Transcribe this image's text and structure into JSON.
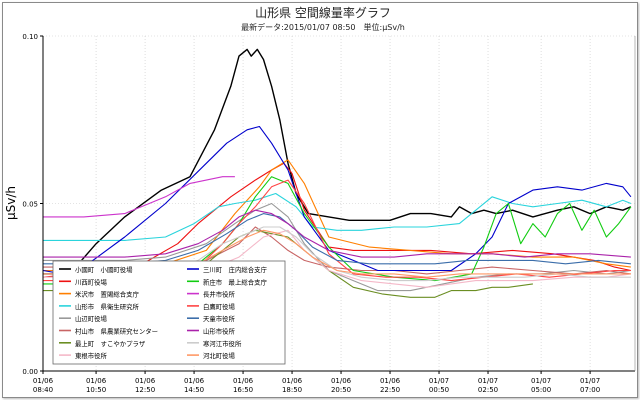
{
  "chart_data": {
    "type": "line",
    "title": "山形県 空間線量率グラフ",
    "subtitle": "最新データ:2015/01/07 08:50　単位:μSv/h",
    "ylabel": "μSv/h",
    "xlabel": "",
    "ylim": [
      0,
      0.1
    ],
    "y_ticks": [
      {
        "value": 0,
        "label": "0.00"
      },
      {
        "value": 0.05,
        "label": "0.05"
      },
      {
        "value": 0.1,
        "label": "0.10"
      }
    ],
    "x_ticks": [
      {
        "t": 0,
        "date": "01/06",
        "time": "08:40"
      },
      {
        "t": 130,
        "date": "01/06",
        "time": "10:50"
      },
      {
        "t": 250,
        "date": "01/06",
        "time": "12:50"
      },
      {
        "t": 370,
        "date": "01/06",
        "time": "14:50"
      },
      {
        "t": 490,
        "date": "01/06",
        "time": "16:50"
      },
      {
        "t": 610,
        "date": "01/06",
        "time": "18:50"
      },
      {
        "t": 730,
        "date": "01/06",
        "time": "20:50"
      },
      {
        "t": 850,
        "date": "01/06",
        "time": "22:50"
      },
      {
        "t": 970,
        "date": "01/07",
        "time": "00:50"
      },
      {
        "t": 1090,
        "date": "01/07",
        "time": "02:50"
      },
      {
        "t": 1220,
        "date": "01/07",
        "time": "05:00"
      },
      {
        "t": 1340,
        "date": "01/07",
        "time": "07:00"
      }
    ],
    "x_range": [
      0,
      1450
    ],
    "grid": "dotted",
    "legend_position": "bottom-left",
    "series": [
      {
        "name": "小國町　小國町役場",
        "color": "#000000",
        "t": [
          0,
          40,
          80,
          130,
          200,
          290,
          360,
          420,
          460,
          480,
          500,
          510,
          525,
          540,
          560,
          580,
          600,
          620,
          650,
          700,
          750,
          800,
          850,
          900,
          950,
          1000,
          1020,
          1050,
          1080,
          1110,
          1150,
          1200,
          1260,
          1300,
          1340,
          1380,
          1420,
          1440
        ],
        "v": [
          0.029,
          0.029,
          0.031,
          0.038,
          0.046,
          0.054,
          0.058,
          0.072,
          0.085,
          0.094,
          0.096,
          0.094,
          0.096,
          0.093,
          0.085,
          0.075,
          0.062,
          0.053,
          0.047,
          0.046,
          0.045,
          0.045,
          0.045,
          0.047,
          0.047,
          0.046,
          0.049,
          0.047,
          0.048,
          0.047,
          0.048,
          0.046,
          0.048,
          0.049,
          0.047,
          0.049,
          0.048,
          0.049
        ]
      },
      {
        "name": "川西町役場",
        "color": "#ee1111",
        "t": [
          0,
          80,
          150,
          230,
          330,
          380,
          460,
          520,
          560,
          590,
          610,
          640,
          700,
          760,
          850,
          950,
          1050,
          1150,
          1250,
          1350,
          1400,
          1440
        ],
        "v": [
          0.028,
          0.029,
          0.029,
          0.031,
          0.038,
          0.044,
          0.052,
          0.057,
          0.06,
          0.062,
          0.059,
          0.048,
          0.037,
          0.036,
          0.036,
          0.036,
          0.035,
          0.036,
          0.035,
          0.033,
          0.031,
          0.03
        ]
      },
      {
        "name": "米沢市　置賜総合支庁",
        "color": "#ff7f00",
        "t": [
          0,
          100,
          200,
          300,
          400,
          470,
          530,
          560,
          600,
          640,
          700,
          800,
          900,
          1000,
          1100,
          1200,
          1300,
          1380,
          1440
        ],
        "v": [
          0.03,
          0.03,
          0.031,
          0.032,
          0.036,
          0.047,
          0.055,
          0.06,
          0.063,
          0.056,
          0.04,
          0.037,
          0.036,
          0.035,
          0.035,
          0.034,
          0.034,
          0.032,
          0.031
        ]
      },
      {
        "name": "山形市　県衛生研究所",
        "color": "#2ad4dc",
        "t": [
          0,
          100,
          200,
          300,
          370,
          430,
          470,
          520,
          570,
          620,
          660,
          720,
          780,
          860,
          940,
          1020,
          1060,
          1100,
          1150,
          1200,
          1260,
          1320,
          1380,
          1420,
          1440
        ],
        "v": [
          0.039,
          0.039,
          0.039,
          0.04,
          0.044,
          0.049,
          0.05,
          0.051,
          0.053,
          0.049,
          0.043,
          0.042,
          0.042,
          0.043,
          0.043,
          0.044,
          0.048,
          0.052,
          0.05,
          0.049,
          0.05,
          0.051,
          0.049,
          0.051,
          0.05
        ]
      },
      {
        "name": "山辺町役場",
        "color": "#999999",
        "t": [
          0,
          100,
          200,
          300,
          400,
          470,
          520,
          560,
          600,
          640,
          700,
          760,
          820,
          900,
          980,
          1060,
          1140,
          1220,
          1300,
          1380,
          1440
        ],
        "v": [
          0.033,
          0.033,
          0.033,
          0.034,
          0.038,
          0.044,
          0.048,
          0.05,
          0.046,
          0.038,
          0.03,
          0.027,
          0.024,
          0.024,
          0.026,
          0.028,
          0.029,
          0.029,
          0.03,
          0.029,
          0.03
        ]
      },
      {
        "name": "村山市　県農業研究センター",
        "color": "#c86464",
        "t": [
          0,
          100,
          200,
          300,
          400,
          480,
          520,
          560,
          600,
          640,
          700,
          780,
          860,
          940,
          1020,
          1100,
          1200,
          1300,
          1380,
          1440
        ],
        "v": [
          0.031,
          0.031,
          0.031,
          0.031,
          0.033,
          0.038,
          0.043,
          0.04,
          0.036,
          0.033,
          0.031,
          0.03,
          0.03,
          0.029,
          0.03,
          0.031,
          0.03,
          0.029,
          0.03,
          0.029
        ]
      },
      {
        "name": "最上町　すこやかプラザ",
        "color": "#6b8e23",
        "t": [
          0,
          100,
          200,
          300,
          380,
          440,
          480,
          520,
          560,
          600,
          640,
          700,
          760,
          830,
          900,
          960,
          1000,
          1060,
          1100,
          1140,
          1200
        ],
        "v": [
          0.024,
          0.024,
          0.025,
          0.026,
          0.03,
          0.036,
          0.04,
          0.042,
          0.041,
          0.04,
          0.036,
          0.03,
          0.025,
          0.023,
          0.022,
          0.022,
          0.024,
          0.024,
          0.025,
          0.025,
          0.026
        ]
      },
      {
        "name": "東根市役所",
        "color": "#f4b8c8",
        "t": [
          0,
          100,
          200,
          300,
          400,
          480,
          540,
          600,
          640,
          700,
          780,
          860,
          940,
          1000,
          1060,
          1120,
          1200,
          1300,
          1380,
          1440
        ],
        "v": [
          0.028,
          0.028,
          0.028,
          0.028,
          0.03,
          0.034,
          0.04,
          0.042,
          0.036,
          0.03,
          0.027,
          0.026,
          0.025,
          0.026,
          0.027,
          0.027,
          0.027,
          0.028,
          0.028,
          0.029
        ]
      },
      {
        "name": "三川町　庄内総合支庁",
        "color": "#0000cc",
        "t": [
          0,
          50,
          100,
          200,
          300,
          400,
          450,
          500,
          530,
          560,
          600,
          640,
          700,
          760,
          820,
          900,
          1000,
          1060,
          1100,
          1140,
          1200,
          1260,
          1320,
          1380,
          1420,
          1440
        ],
        "v": [
          0.03,
          0.029,
          0.031,
          0.04,
          0.05,
          0.062,
          0.068,
          0.072,
          0.073,
          0.068,
          0.06,
          0.046,
          0.036,
          0.033,
          0.03,
          0.03,
          0.03,
          0.035,
          0.04,
          0.05,
          0.054,
          0.055,
          0.054,
          0.056,
          0.055,
          0.052
        ]
      },
      {
        "name": "新庄市　最上総合支庁",
        "color": "#11cc11",
        "t": [
          0,
          100,
          200,
          300,
          380,
          440,
          480,
          520,
          560,
          600,
          640,
          700,
          760,
          860,
          960,
          1050,
          1080,
          1110,
          1140,
          1170,
          1200,
          1230,
          1260,
          1290,
          1320,
          1350,
          1380,
          1410,
          1440
        ],
        "v": [
          0.026,
          0.026,
          0.026,
          0.027,
          0.032,
          0.038,
          0.044,
          0.052,
          0.058,
          0.056,
          0.047,
          0.037,
          0.03,
          0.028,
          0.027,
          0.029,
          0.037,
          0.047,
          0.05,
          0.038,
          0.044,
          0.04,
          0.047,
          0.05,
          0.042,
          0.048,
          0.04,
          0.044,
          0.049
        ]
      },
      {
        "name": "長井市役所",
        "color": "#cc33cc",
        "t": [
          0,
          100,
          200,
          260,
          300,
          360,
          400,
          440,
          470
        ],
        "v": [
          0.046,
          0.046,
          0.047,
          0.05,
          0.052,
          0.056,
          0.057,
          0.058,
          0.058
        ]
      },
      {
        "name": "白鷹町役場",
        "color": "#ff4444",
        "t": [
          0,
          100,
          200,
          300,
          380,
          440,
          480,
          520,
          560,
          600,
          640,
          700,
          760,
          840,
          920,
          1000,
          1080,
          1160,
          1240,
          1320,
          1400,
          1440
        ],
        "v": [
          0.027,
          0.027,
          0.027,
          0.028,
          0.031,
          0.038,
          0.044,
          0.049,
          0.055,
          0.057,
          0.05,
          0.035,
          0.029,
          0.028,
          0.028,
          0.027,
          0.028,
          0.029,
          0.028,
          0.029,
          0.03,
          0.03
        ]
      },
      {
        "name": "天童市役所",
        "color": "#3c6eaa",
        "t": [
          0,
          100,
          200,
          300,
          380,
          450,
          500,
          540,
          580,
          620,
          660,
          720,
          800,
          880,
          960,
          1040,
          1120,
          1200,
          1280,
          1360,
          1440
        ],
        "v": [
          0.032,
          0.032,
          0.032,
          0.033,
          0.036,
          0.041,
          0.045,
          0.047,
          0.046,
          0.042,
          0.037,
          0.033,
          0.032,
          0.032,
          0.032,
          0.033,
          0.033,
          0.033,
          0.032,
          0.033,
          0.032
        ]
      },
      {
        "name": "山形市役所",
        "color": "#aa22aa",
        "t": [
          0,
          100,
          200,
          300,
          380,
          440,
          480,
          520,
          560,
          600,
          640,
          700,
          780,
          860,
          940,
          1020,
          1100,
          1180,
          1260,
          1340,
          1440
        ],
        "v": [
          0.034,
          0.034,
          0.034,
          0.035,
          0.038,
          0.042,
          0.046,
          0.048,
          0.047,
          0.044,
          0.04,
          0.036,
          0.034,
          0.034,
          0.035,
          0.035,
          0.035,
          0.034,
          0.035,
          0.035,
          0.034
        ]
      },
      {
        "name": "寒河江市役所",
        "color": "#cccccc",
        "t": [
          0,
          100,
          200,
          300,
          380,
          440,
          500,
          540,
          580,
          620,
          660,
          720,
          780,
          860,
          940,
          1020,
          1100,
          1180,
          1260,
          1340,
          1440
        ],
        "v": [
          0.029,
          0.029,
          0.029,
          0.03,
          0.033,
          0.038,
          0.041,
          0.043,
          0.043,
          0.04,
          0.035,
          0.03,
          0.028,
          0.027,
          0.027,
          0.028,
          0.028,
          0.028,
          0.029,
          0.028,
          0.028
        ]
      },
      {
        "name": "河北町役場",
        "color": "#ff9966",
        "t": [
          0,
          100,
          200,
          300,
          380,
          440,
          500,
          540,
          580,
          620,
          660,
          720,
          780,
          860,
          940,
          1020,
          1100,
          1180,
          1260,
          1340,
          1440
        ],
        "v": [
          0.029,
          0.029,
          0.029,
          0.03,
          0.032,
          0.036,
          0.04,
          0.042,
          0.041,
          0.038,
          0.034,
          0.03,
          0.029,
          0.029,
          0.028,
          0.029,
          0.029,
          0.029,
          0.029,
          0.029,
          0.029
        ]
      }
    ]
  }
}
